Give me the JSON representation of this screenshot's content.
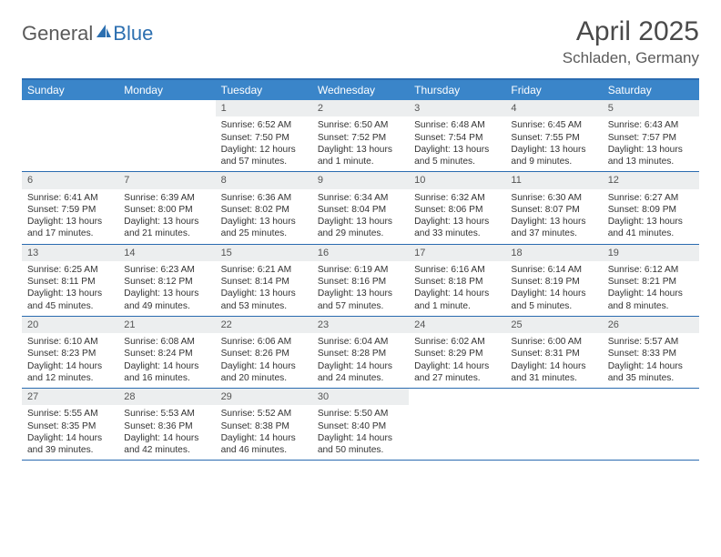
{
  "brand": {
    "general": "General",
    "blue": "Blue"
  },
  "title": "April 2025",
  "location": "Schladen, Germany",
  "colors": {
    "header_bg": "#3a85c9",
    "header_text": "#ffffff",
    "border": "#2a6bb0",
    "datebar_bg": "#eceeef",
    "text": "#333333",
    "logo_gray": "#5a5a5a",
    "logo_blue": "#2c6fb0",
    "title_color": "#4a4a4a"
  },
  "day_names": [
    "Sunday",
    "Monday",
    "Tuesday",
    "Wednesday",
    "Thursday",
    "Friday",
    "Saturday"
  ],
  "weeks": [
    [
      {
        "empty": true
      },
      {
        "empty": true
      },
      {
        "date": "1",
        "sunrise": "Sunrise: 6:52 AM",
        "sunset": "Sunset: 7:50 PM",
        "day1": "Daylight: 12 hours",
        "day2": "and 57 minutes."
      },
      {
        "date": "2",
        "sunrise": "Sunrise: 6:50 AM",
        "sunset": "Sunset: 7:52 PM",
        "day1": "Daylight: 13 hours",
        "day2": "and 1 minute."
      },
      {
        "date": "3",
        "sunrise": "Sunrise: 6:48 AM",
        "sunset": "Sunset: 7:54 PM",
        "day1": "Daylight: 13 hours",
        "day2": "and 5 minutes."
      },
      {
        "date": "4",
        "sunrise": "Sunrise: 6:45 AM",
        "sunset": "Sunset: 7:55 PM",
        "day1": "Daylight: 13 hours",
        "day2": "and 9 minutes."
      },
      {
        "date": "5",
        "sunrise": "Sunrise: 6:43 AM",
        "sunset": "Sunset: 7:57 PM",
        "day1": "Daylight: 13 hours",
        "day2": "and 13 minutes."
      }
    ],
    [
      {
        "date": "6",
        "sunrise": "Sunrise: 6:41 AM",
        "sunset": "Sunset: 7:59 PM",
        "day1": "Daylight: 13 hours",
        "day2": "and 17 minutes."
      },
      {
        "date": "7",
        "sunrise": "Sunrise: 6:39 AM",
        "sunset": "Sunset: 8:00 PM",
        "day1": "Daylight: 13 hours",
        "day2": "and 21 minutes."
      },
      {
        "date": "8",
        "sunrise": "Sunrise: 6:36 AM",
        "sunset": "Sunset: 8:02 PM",
        "day1": "Daylight: 13 hours",
        "day2": "and 25 minutes."
      },
      {
        "date": "9",
        "sunrise": "Sunrise: 6:34 AM",
        "sunset": "Sunset: 8:04 PM",
        "day1": "Daylight: 13 hours",
        "day2": "and 29 minutes."
      },
      {
        "date": "10",
        "sunrise": "Sunrise: 6:32 AM",
        "sunset": "Sunset: 8:06 PM",
        "day1": "Daylight: 13 hours",
        "day2": "and 33 minutes."
      },
      {
        "date": "11",
        "sunrise": "Sunrise: 6:30 AM",
        "sunset": "Sunset: 8:07 PM",
        "day1": "Daylight: 13 hours",
        "day2": "and 37 minutes."
      },
      {
        "date": "12",
        "sunrise": "Sunrise: 6:27 AM",
        "sunset": "Sunset: 8:09 PM",
        "day1": "Daylight: 13 hours",
        "day2": "and 41 minutes."
      }
    ],
    [
      {
        "date": "13",
        "sunrise": "Sunrise: 6:25 AM",
        "sunset": "Sunset: 8:11 PM",
        "day1": "Daylight: 13 hours",
        "day2": "and 45 minutes."
      },
      {
        "date": "14",
        "sunrise": "Sunrise: 6:23 AM",
        "sunset": "Sunset: 8:12 PM",
        "day1": "Daylight: 13 hours",
        "day2": "and 49 minutes."
      },
      {
        "date": "15",
        "sunrise": "Sunrise: 6:21 AM",
        "sunset": "Sunset: 8:14 PM",
        "day1": "Daylight: 13 hours",
        "day2": "and 53 minutes."
      },
      {
        "date": "16",
        "sunrise": "Sunrise: 6:19 AM",
        "sunset": "Sunset: 8:16 PM",
        "day1": "Daylight: 13 hours",
        "day2": "and 57 minutes."
      },
      {
        "date": "17",
        "sunrise": "Sunrise: 6:16 AM",
        "sunset": "Sunset: 8:18 PM",
        "day1": "Daylight: 14 hours",
        "day2": "and 1 minute."
      },
      {
        "date": "18",
        "sunrise": "Sunrise: 6:14 AM",
        "sunset": "Sunset: 8:19 PM",
        "day1": "Daylight: 14 hours",
        "day2": "and 5 minutes."
      },
      {
        "date": "19",
        "sunrise": "Sunrise: 6:12 AM",
        "sunset": "Sunset: 8:21 PM",
        "day1": "Daylight: 14 hours",
        "day2": "and 8 minutes."
      }
    ],
    [
      {
        "date": "20",
        "sunrise": "Sunrise: 6:10 AM",
        "sunset": "Sunset: 8:23 PM",
        "day1": "Daylight: 14 hours",
        "day2": "and 12 minutes."
      },
      {
        "date": "21",
        "sunrise": "Sunrise: 6:08 AM",
        "sunset": "Sunset: 8:24 PM",
        "day1": "Daylight: 14 hours",
        "day2": "and 16 minutes."
      },
      {
        "date": "22",
        "sunrise": "Sunrise: 6:06 AM",
        "sunset": "Sunset: 8:26 PM",
        "day1": "Daylight: 14 hours",
        "day2": "and 20 minutes."
      },
      {
        "date": "23",
        "sunrise": "Sunrise: 6:04 AM",
        "sunset": "Sunset: 8:28 PM",
        "day1": "Daylight: 14 hours",
        "day2": "and 24 minutes."
      },
      {
        "date": "24",
        "sunrise": "Sunrise: 6:02 AM",
        "sunset": "Sunset: 8:29 PM",
        "day1": "Daylight: 14 hours",
        "day2": "and 27 minutes."
      },
      {
        "date": "25",
        "sunrise": "Sunrise: 6:00 AM",
        "sunset": "Sunset: 8:31 PM",
        "day1": "Daylight: 14 hours",
        "day2": "and 31 minutes."
      },
      {
        "date": "26",
        "sunrise": "Sunrise: 5:57 AM",
        "sunset": "Sunset: 8:33 PM",
        "day1": "Daylight: 14 hours",
        "day2": "and 35 minutes."
      }
    ],
    [
      {
        "date": "27",
        "sunrise": "Sunrise: 5:55 AM",
        "sunset": "Sunset: 8:35 PM",
        "day1": "Daylight: 14 hours",
        "day2": "and 39 minutes."
      },
      {
        "date": "28",
        "sunrise": "Sunrise: 5:53 AM",
        "sunset": "Sunset: 8:36 PM",
        "day1": "Daylight: 14 hours",
        "day2": "and 42 minutes."
      },
      {
        "date": "29",
        "sunrise": "Sunrise: 5:52 AM",
        "sunset": "Sunset: 8:38 PM",
        "day1": "Daylight: 14 hours",
        "day2": "and 46 minutes."
      },
      {
        "date": "30",
        "sunrise": "Sunrise: 5:50 AM",
        "sunset": "Sunset: 8:40 PM",
        "day1": "Daylight: 14 hours",
        "day2": "and 50 minutes."
      },
      {
        "empty": true
      },
      {
        "empty": true
      },
      {
        "empty": true
      }
    ]
  ]
}
